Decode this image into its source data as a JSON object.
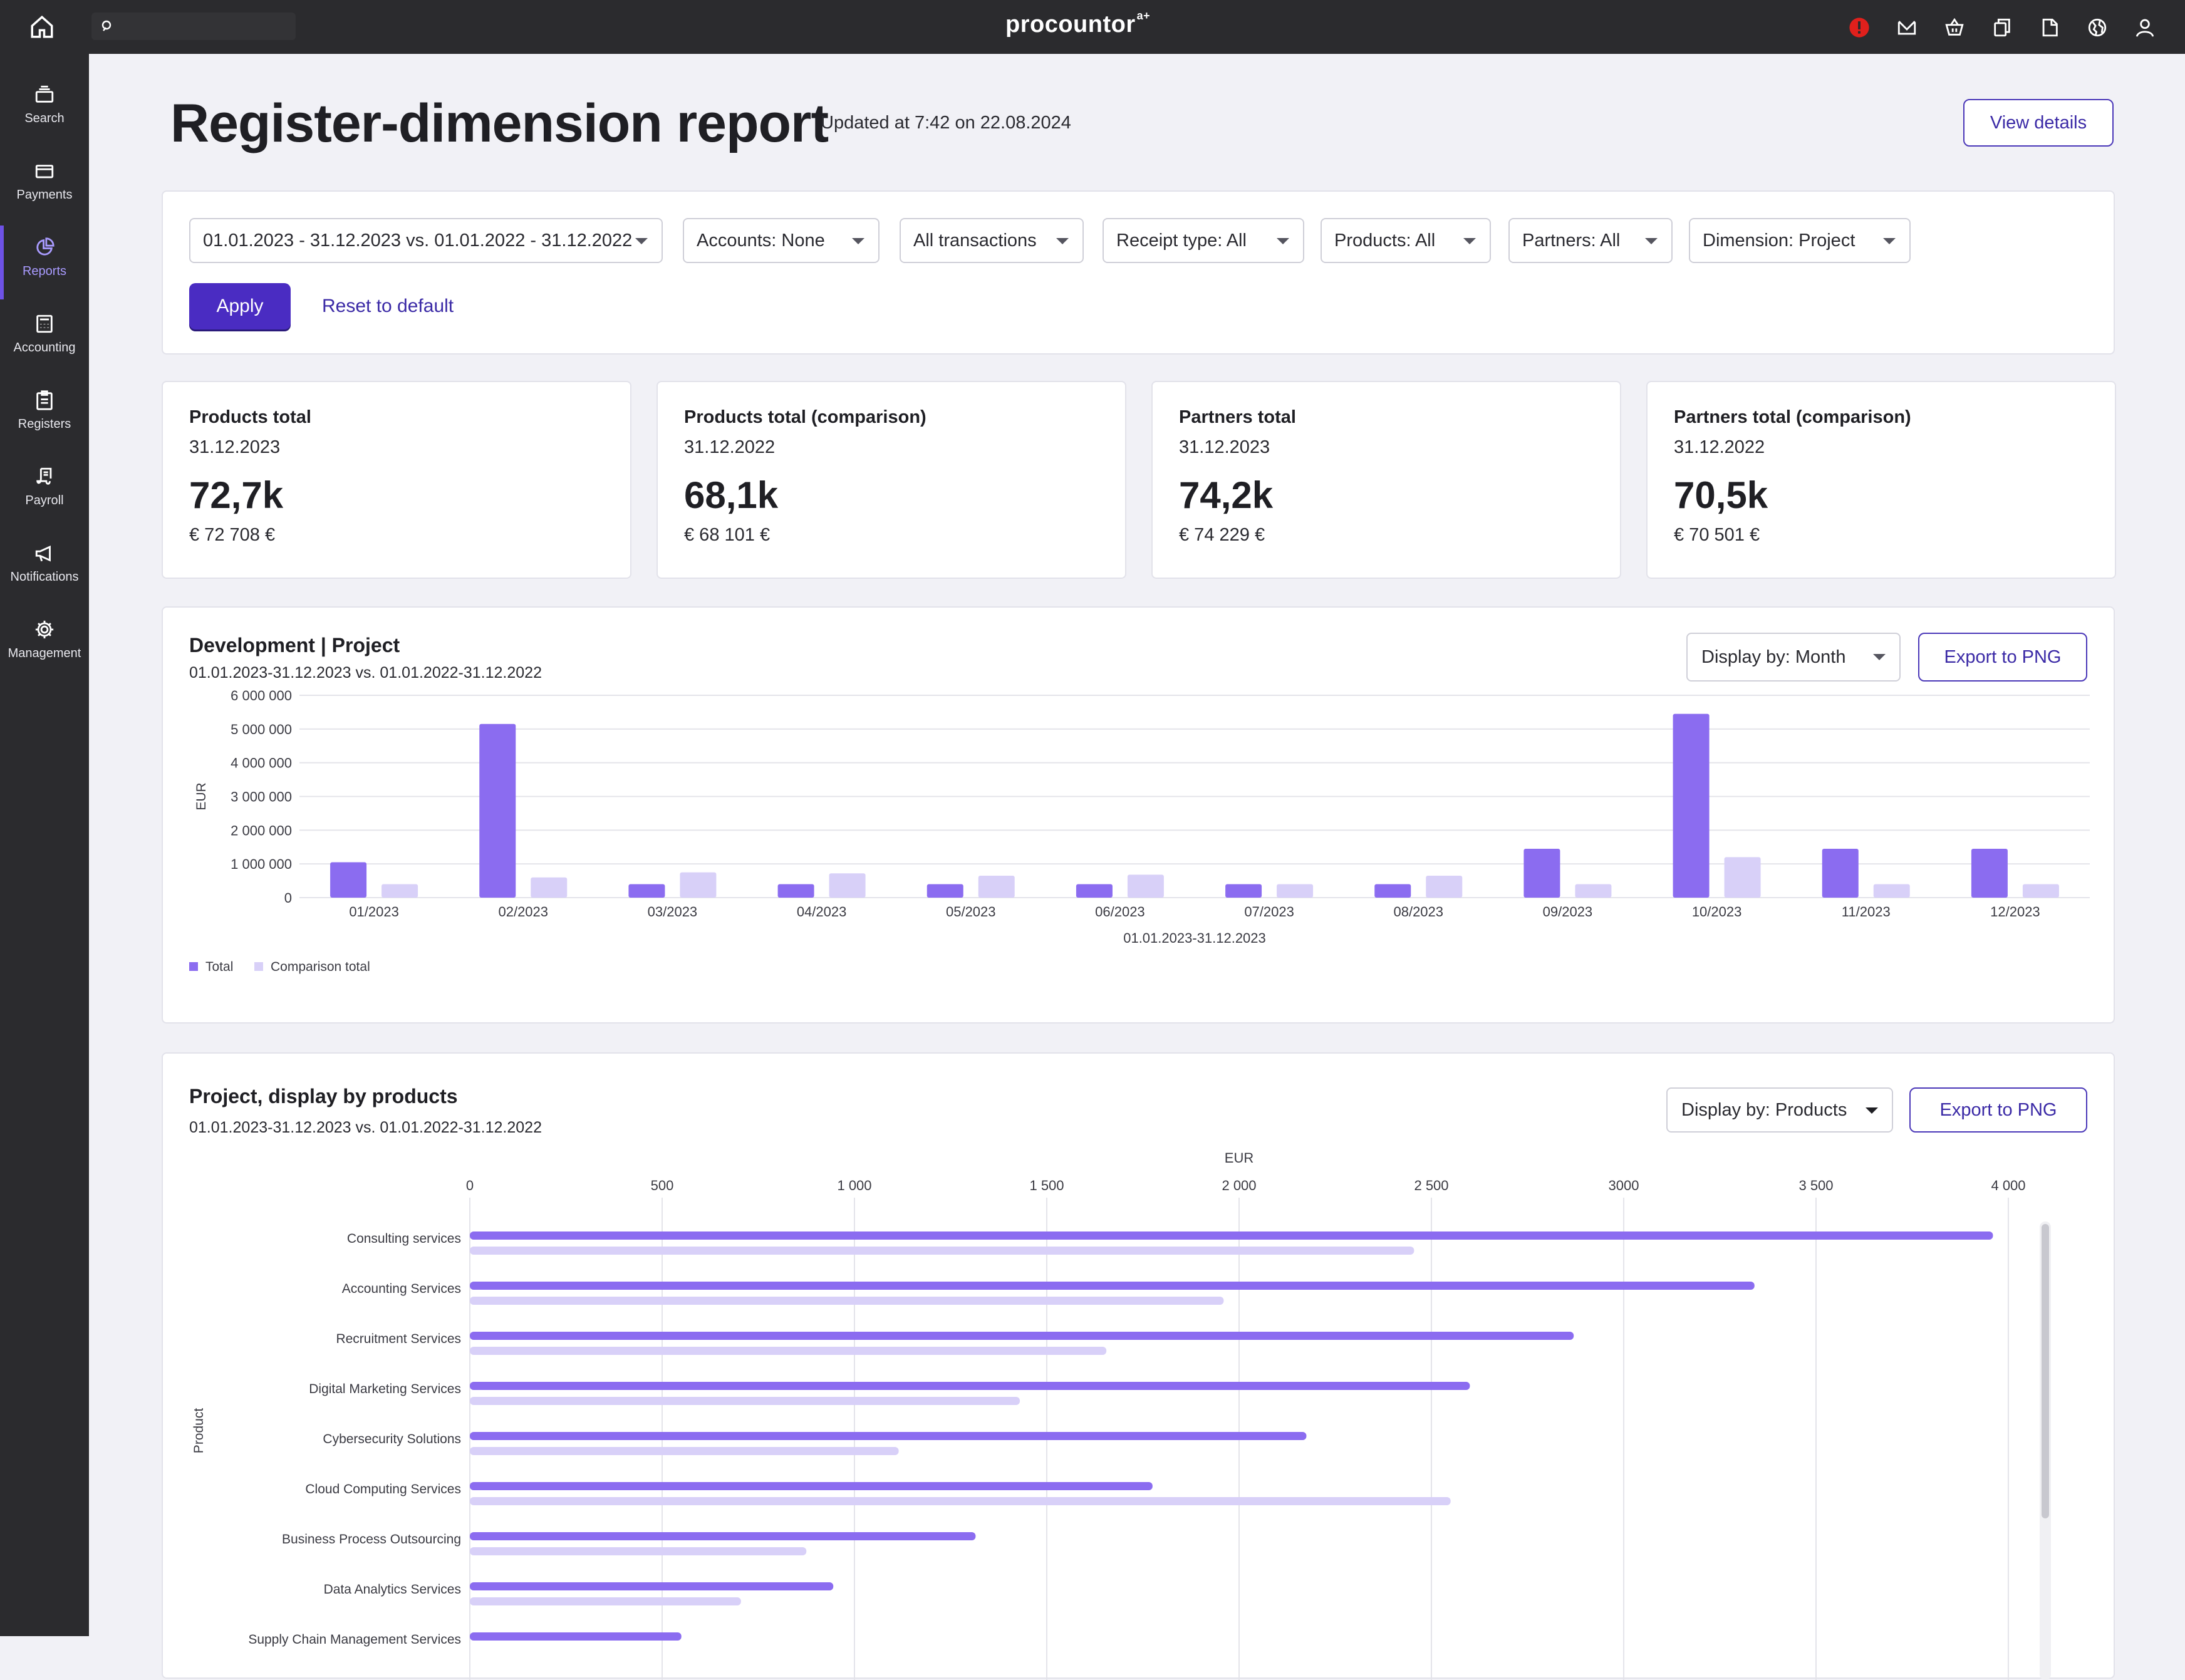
{
  "topbar": {
    "brand": "procountor",
    "brand_suffix": "a+",
    "icons": [
      "alert-icon",
      "mail-icon",
      "basket-icon",
      "copy-icon",
      "document-icon",
      "globe-icon",
      "user-icon"
    ]
  },
  "sidebar": {
    "items": [
      {
        "label": "Search",
        "icon": "search-register-icon"
      },
      {
        "label": "Payments",
        "icon": "card-icon"
      },
      {
        "label": "Reports",
        "icon": "pie-chart-icon"
      },
      {
        "label": "Accounting",
        "icon": "calculator-icon"
      },
      {
        "label": "Registers",
        "icon": "clipboard-icon"
      },
      {
        "label": "Payroll",
        "icon": "payroll-icon"
      },
      {
        "label": "Notifications",
        "icon": "megaphone-icon"
      },
      {
        "label": "Management",
        "icon": "gear-icon"
      }
    ],
    "active": "Reports"
  },
  "header": {
    "title": "Register-dimension report",
    "updated": "Updated at 7:42 on 22.08.2024",
    "view_details": "View details"
  },
  "filters": {
    "period": "01.01.2023 - 31.12.2023 vs. 01.01.2022 - 31.12.2022",
    "accounts": "Accounts:  None",
    "transactions": "All transactions",
    "receipt_type": "Receipt type:  All",
    "products": "Products:  All",
    "partners": "Partners:  All",
    "dimension": "Dimension:  Project",
    "apply": "Apply",
    "reset": "Reset to default"
  },
  "stats": [
    {
      "label": "Products total",
      "date": "31.12.2023",
      "value": "72,7k",
      "eur": "€ 72 708 €"
    },
    {
      "label": "Products total (comparison)",
      "date": "31.12.2022",
      "value": "68,1k",
      "eur": "€ 68 101 €"
    },
    {
      "label": "Partners total",
      "date": "31.12.2023",
      "value": "74,2k",
      "eur": "€ 74 229 €"
    },
    {
      "label": "Partners total (comparison)",
      "date": "31.12.2022",
      "value": "70,5k",
      "eur": "€ 70 501 €"
    }
  ],
  "dev_chart_card": {
    "title": "Development | Project",
    "subtitle": "01.01.2023-31.12.2023 vs. 01.01.2022-31.12.2022",
    "display_by": "Display by:  Month",
    "export": "Export to PNG"
  },
  "products_chart_card": {
    "title": "Project, display by products",
    "subtitle": "01.01.2023-31.12.2023 vs. 01.01.2022-31.12.2022",
    "display_by": "Display by: Products",
    "export": "Export to PNG"
  },
  "colors": {
    "total": "#8b6cf0",
    "comparison": "#d8d0f8",
    "primary": "#4a2cc2"
  },
  "chart_data": [
    {
      "type": "bar",
      "title": "Development | Project",
      "xlabel": "01.01.2023-31.12.2023",
      "ylabel": "EUR",
      "ylim": [
        0,
        6000000
      ],
      "yticks": [
        0,
        1000000,
        2000000,
        3000000,
        4000000,
        5000000,
        6000000
      ],
      "ytick_labels": [
        "0",
        "1 000 000",
        "2 000 000",
        "3 000 000",
        "4 000 000",
        "5 000 000",
        "6 000 000"
      ],
      "categories": [
        "01/2023",
        "02/2023",
        "03/2023",
        "04/2023",
        "05/2023",
        "06/2023",
        "07/2023",
        "08/2023",
        "09/2023",
        "10/2023",
        "11/2023",
        "12/2023"
      ],
      "series": [
        {
          "name": "Total",
          "values": [
            1050000,
            5150000,
            400000,
            400000,
            400000,
            400000,
            400000,
            400000,
            1450000,
            5450000,
            1450000,
            1450000
          ]
        },
        {
          "name": "Comparison total",
          "values": [
            400000,
            600000,
            750000,
            720000,
            650000,
            680000,
            400000,
            650000,
            400000,
            1200000,
            400000,
            400000
          ]
        }
      ],
      "legend": "bottom-left"
    },
    {
      "type": "bar",
      "orientation": "horizontal",
      "title": "Project, display by products",
      "xlabel": "EUR",
      "ylabel": "Product",
      "xlim": [
        0,
        4000
      ],
      "xticks": [
        0,
        500,
        1000,
        1500,
        2000,
        2500,
        3000,
        3500,
        4000
      ],
      "xtick_labels": [
        "0",
        "500",
        "1 000",
        "1 500",
        "2 000",
        "2 500",
        "3000",
        "3 500",
        "4 000"
      ],
      "categories": [
        "Consulting services",
        "Accounting Services",
        "Recruitment Services",
        "Digital Marketing Services",
        "Cybersecurity Solutions",
        "Cloud Computing Services",
        "Business Process Outsourcing",
        "Data Analytics Services",
        "Supply Chain Management Services"
      ],
      "series": [
        {
          "name": "Total",
          "values": [
            3960,
            3340,
            2870,
            2600,
            2175,
            1775,
            1315,
            945,
            550
          ]
        },
        {
          "name": "Comparison total",
          "values": [
            2455,
            1960,
            1655,
            1430,
            1115,
            2550,
            875,
            705,
            null
          ]
        }
      ]
    }
  ]
}
